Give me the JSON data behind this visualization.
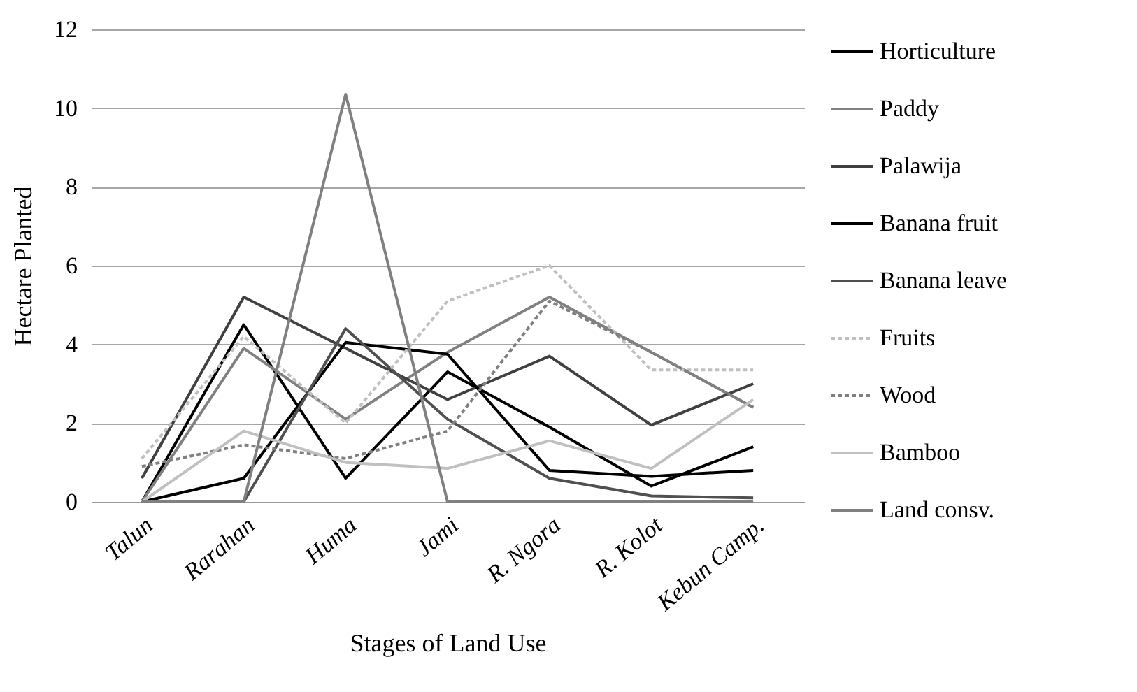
{
  "chart_data": {
    "type": "line",
    "xlabel": "Stages of Land Use",
    "ylabel": "Hectare Planted",
    "categories": [
      "Talun",
      "Rarahan",
      "Huma",
      "Jami",
      "R. Ngora",
      "R. Kolot",
      "Kebun Camp."
    ],
    "series": [
      {
        "name": "Horticulture",
        "color": "#000000",
        "line_style": "solid",
        "values": [
          0,
          4.5,
          0.6,
          3.3,
          1.9,
          0.4,
          1.4
        ]
      },
      {
        "name": "Paddy",
        "color": "#808080",
        "line_style": "solid",
        "values": [
          0,
          3.9,
          2.1,
          3.8,
          5.2,
          3.8,
          2.4
        ]
      },
      {
        "name": "Palawija",
        "color": "#404040",
        "line_style": "solid",
        "values": [
          0.6,
          5.2,
          3.9,
          2.6,
          3.7,
          1.95,
          3.0
        ]
      },
      {
        "name": "Banana fruit",
        "color": "#000000",
        "line_style": "solid",
        "values": [
          0,
          0.6,
          4.05,
          3.75,
          0.8,
          0.65,
          0.8
        ]
      },
      {
        "name": "Banana leave",
        "color": "#505050",
        "line_style": "solid",
        "values": [
          0,
          0,
          4.4,
          2.1,
          0.6,
          0.15,
          0.1
        ]
      },
      {
        "name": "Fruits",
        "color": "#c0c0c0",
        "line_style": "dotted",
        "values": [
          1.1,
          4.2,
          2.0,
          5.1,
          6.0,
          3.35,
          3.35
        ]
      },
      {
        "name": "Wood",
        "color": "#808080",
        "line_style": "dotted",
        "values": [
          0.9,
          1.45,
          1.1,
          1.8,
          5.1,
          3.8,
          2.4
        ]
      },
      {
        "name": "Bamboo",
        "color": "#c0c0c0",
        "line_style": "solid",
        "values": [
          0,
          1.8,
          1.0,
          0.85,
          1.55,
          0.85,
          2.6
        ]
      },
      {
        "name": "Land consv.",
        "color": "#808080",
        "line_style": "solid",
        "values": [
          0,
          0,
          10.35,
          0,
          0,
          0,
          0
        ]
      }
    ],
    "ylim": [
      0,
      12
    ],
    "yticks": [
      0,
      2,
      4,
      6,
      8,
      10,
      12
    ],
    "grid": "y",
    "legend": "right",
    "marker": "none"
  }
}
